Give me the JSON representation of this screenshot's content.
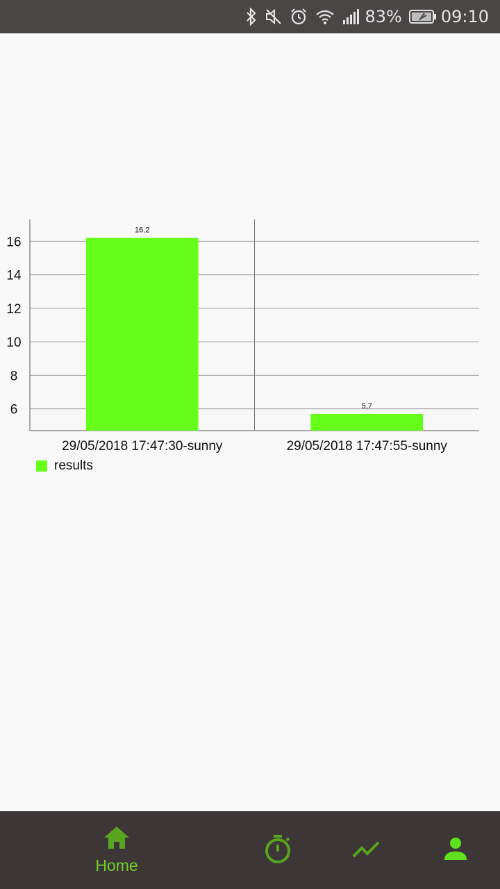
{
  "status_bar": {
    "battery": "83%",
    "time": "09:10",
    "icons": [
      "bluetooth-icon",
      "mute-icon",
      "alarm-icon",
      "wifi-icon",
      "signal-icon",
      "battery-icon"
    ]
  },
  "chart_data": {
    "type": "bar",
    "categories": [
      "29/05/2018 17:47:30-sunny",
      "29/05/2018 17:47:55-sunny"
    ],
    "series": [
      {
        "name": "results",
        "values": [
          16.2,
          5.7
        ]
      }
    ],
    "data_labels": [
      "16,2",
      "5,7"
    ],
    "y_ticks": [
      "6",
      "8",
      "10",
      "12",
      "14",
      "16"
    ],
    "ylim": [
      4.7,
      17.3
    ],
    "grid": true,
    "legend_position": "bottom-left",
    "bar_color": "#66ff1a"
  },
  "bottom_nav": {
    "home_label": "Home",
    "accent_color": "#6ecf2a",
    "items": [
      "home-icon",
      "timer-icon",
      "trend-icon",
      "profile-icon"
    ]
  }
}
